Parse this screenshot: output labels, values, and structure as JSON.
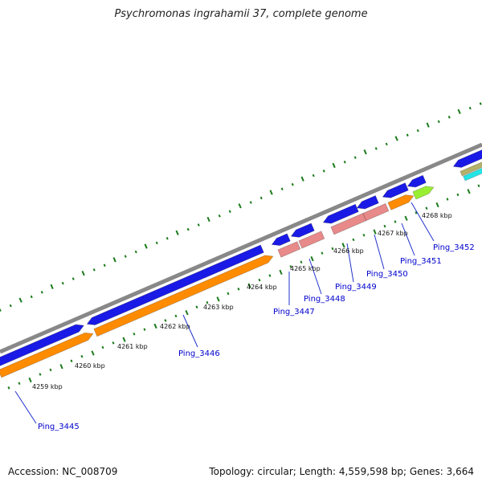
{
  "title": "Psychromonas ingrahamii 37, complete genome",
  "accession_text": "Accession: NC_008709",
  "topology_text": "Topology: circular; Length: 4,559,598 bp; Genes: 3,664",
  "colors": {
    "backbone": "#888888",
    "cds_forward": "#1a1ae6",
    "cds_reverse": "#ff8c00",
    "rna_pink": "#e88a8a",
    "rna_green": "#99ee33",
    "cyan": "#22e6e6",
    "khaki": "#b5b06a",
    "gc_ticks": "#1a7a1a",
    "gene_label": "#0000cc"
  },
  "scale_labels": [
    "4259 kbp",
    "4260 kbp",
    "4261 kbp",
    "4262 kbp",
    "4263 kbp",
    "4264 kbp",
    "4265 kbp",
    "4266 kbp",
    "4267 kbp",
    "4268 kbp"
  ],
  "gene_labels": [
    "Ping_3445",
    "Ping_3446",
    "Ping_3447",
    "Ping_3448",
    "Ping_3449",
    "Ping_3450",
    "Ping_3451",
    "Ping_3452"
  ]
}
